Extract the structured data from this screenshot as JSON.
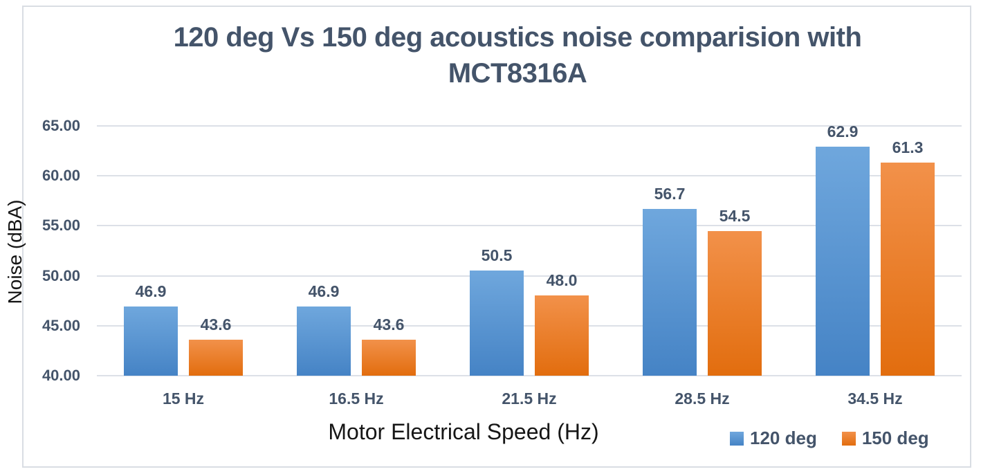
{
  "chart_data": {
    "type": "bar",
    "title": "120 deg Vs 150 deg acoustics noise comparision with MCT8316A",
    "xlabel": "Motor Electrical Speed (Hz)",
    "ylabel": "Noise (dBA)",
    "categories": [
      "15 Hz",
      "16.5 Hz",
      "21.5 Hz",
      "28.5 Hz",
      "34.5 Hz"
    ],
    "series": [
      {
        "name": "120 deg",
        "values": [
          46.9,
          46.9,
          50.5,
          56.7,
          62.9
        ],
        "color": "#5B9BD5",
        "gradient_top": "#6FA7DD",
        "gradient_bottom": "#4583C5"
      },
      {
        "name": "150 deg",
        "values": [
          43.6,
          43.6,
          48.0,
          54.5,
          61.3
        ],
        "color": "#ED7D31",
        "gradient_top": "#F2914A",
        "gradient_bottom": "#E26D0E"
      }
    ],
    "ylim": [
      40,
      65
    ],
    "ytick_step": 5,
    "ytick_decimals": 2,
    "value_label_decimals": 1,
    "grid": true,
    "legend_position": "bottom-right",
    "text_color": "#44546A",
    "axis_title_color": "#161616",
    "gridline_color": "#DCE0E7",
    "frame_border_color": "#D9DDE3"
  }
}
